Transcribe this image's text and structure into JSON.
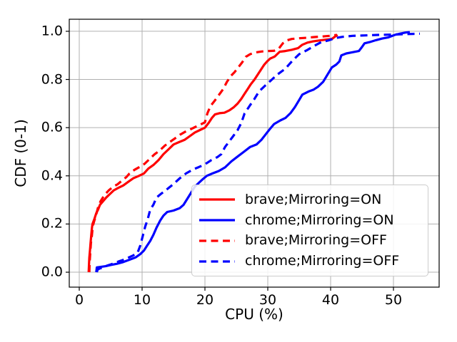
{
  "chart_data": {
    "type": "line",
    "subtype": "empirical-cdf",
    "title": "",
    "xlabel": "CPU (%)",
    "ylabel": "CDF (0-1)",
    "xlim": [
      -1.59,
      57.27
    ],
    "ylim": [
      -0.062,
      1.05
    ],
    "grid": true,
    "grid_color": "#b0b0b0",
    "legend_position": "lower right",
    "xtick_values": [
      0,
      10,
      20,
      30,
      40,
      50
    ],
    "xtick_labels": [
      "0",
      "10",
      "20",
      "30",
      "40",
      "50"
    ],
    "ytick_values": [
      0.0,
      0.2,
      0.4,
      0.6,
      0.8,
      1.0
    ],
    "ytick_labels": [
      "0.0",
      "0.2",
      "0.4",
      "0.6",
      "0.8",
      "1.0"
    ],
    "series": [
      {
        "name": "brave;Mirroring=ON",
        "color": "#ff0000",
        "style": "solid",
        "points": [
          [
            1.5,
            0
          ],
          [
            1.55,
            0.03
          ],
          [
            1.6,
            0.06
          ],
          [
            1.7,
            0.09
          ],
          [
            1.8,
            0.12
          ],
          [
            1.9,
            0.15
          ],
          [
            2.0,
            0.18
          ],
          [
            2.1,
            0.2
          ],
          [
            2.4,
            0.22
          ],
          [
            2.7,
            0.245
          ],
          [
            3.0,
            0.26
          ],
          [
            3.3,
            0.28
          ],
          [
            3.8,
            0.295
          ],
          [
            4.3,
            0.31
          ],
          [
            4.9,
            0.325
          ],
          [
            5.5,
            0.34
          ],
          [
            6.2,
            0.35
          ],
          [
            7.0,
            0.36
          ],
          [
            7.8,
            0.375
          ],
          [
            8.6,
            0.39
          ],
          [
            9.5,
            0.4
          ],
          [
            10.3,
            0.41
          ],
          [
            11.0,
            0.43
          ],
          [
            11.8,
            0.445
          ],
          [
            12.6,
            0.465
          ],
          [
            13.4,
            0.49
          ],
          [
            14.2,
            0.51
          ],
          [
            15.0,
            0.53
          ],
          [
            15.9,
            0.54
          ],
          [
            16.8,
            0.55
          ],
          [
            17.6,
            0.565
          ],
          [
            18.4,
            0.58
          ],
          [
            19.2,
            0.59
          ],
          [
            20.0,
            0.6
          ],
          [
            20.6,
            0.62
          ],
          [
            21.1,
            0.64
          ],
          [
            21.6,
            0.655
          ],
          [
            22.3,
            0.66
          ],
          [
            23.1,
            0.662
          ],
          [
            23.9,
            0.672
          ],
          [
            24.6,
            0.685
          ],
          [
            25.2,
            0.7
          ],
          [
            25.8,
            0.72
          ],
          [
            26.3,
            0.74
          ],
          [
            26.8,
            0.76
          ],
          [
            27.3,
            0.78
          ],
          [
            27.9,
            0.8
          ],
          [
            28.4,
            0.82
          ],
          [
            28.9,
            0.84
          ],
          [
            29.4,
            0.86
          ],
          [
            29.9,
            0.875
          ],
          [
            30.4,
            0.887
          ],
          [
            31.1,
            0.895
          ],
          [
            31.9,
            0.915
          ],
          [
            32.8,
            0.918
          ],
          [
            33.8,
            0.923
          ],
          [
            34.8,
            0.93
          ],
          [
            35.5,
            0.944
          ],
          [
            36.3,
            0.953
          ],
          [
            37.2,
            0.958
          ],
          [
            38.2,
            0.962
          ],
          [
            39.2,
            0.965
          ],
          [
            40.2,
            0.968
          ],
          [
            40.7,
            0.978
          ],
          [
            41.1,
            0.985
          ]
        ]
      },
      {
        "name": "chrome;Mirroring=ON",
        "color": "#0000ff",
        "style": "solid",
        "points": [
          [
            2.7,
            0
          ],
          [
            2.75,
            0.01
          ],
          [
            2.8,
            0.02
          ],
          [
            3.4,
            0.022
          ],
          [
            4.2,
            0.025
          ],
          [
            5.0,
            0.03
          ],
          [
            6.0,
            0.035
          ],
          [
            7.0,
            0.042
          ],
          [
            8.0,
            0.052
          ],
          [
            9.0,
            0.062
          ],
          [
            9.7,
            0.075
          ],
          [
            10.3,
            0.09
          ],
          [
            10.8,
            0.11
          ],
          [
            11.3,
            0.13
          ],
          [
            11.8,
            0.155
          ],
          [
            12.3,
            0.185
          ],
          [
            12.9,
            0.215
          ],
          [
            13.4,
            0.235
          ],
          [
            14.0,
            0.25
          ],
          [
            15.0,
            0.256
          ],
          [
            16.0,
            0.266
          ],
          [
            16.6,
            0.28
          ],
          [
            17.2,
            0.305
          ],
          [
            17.8,
            0.33
          ],
          [
            18.4,
            0.355
          ],
          [
            19.0,
            0.37
          ],
          [
            19.6,
            0.385
          ],
          [
            20.3,
            0.4
          ],
          [
            21.2,
            0.41
          ],
          [
            22.2,
            0.42
          ],
          [
            23.2,
            0.435
          ],
          [
            24.2,
            0.46
          ],
          [
            25.2,
            0.48
          ],
          [
            26.2,
            0.5
          ],
          [
            27.2,
            0.52
          ],
          [
            28.2,
            0.53
          ],
          [
            29.0,
            0.55
          ],
          [
            29.6,
            0.57
          ],
          [
            30.2,
            0.59
          ],
          [
            31.0,
            0.615
          ],
          [
            32.0,
            0.63
          ],
          [
            32.8,
            0.64
          ],
          [
            33.6,
            0.66
          ],
          [
            34.3,
            0.685
          ],
          [
            35.0,
            0.715
          ],
          [
            35.5,
            0.737
          ],
          [
            36.5,
            0.75
          ],
          [
            37.3,
            0.758
          ],
          [
            38.0,
            0.77
          ],
          [
            38.8,
            0.79
          ],
          [
            39.5,
            0.82
          ],
          [
            40.2,
            0.85
          ],
          [
            40.9,
            0.862
          ],
          [
            41.4,
            0.875
          ],
          [
            41.7,
            0.9
          ],
          [
            42.5,
            0.908
          ],
          [
            43.5,
            0.913
          ],
          [
            44.5,
            0.918
          ],
          [
            45.0,
            0.935
          ],
          [
            45.4,
            0.95
          ],
          [
            46.2,
            0.955
          ],
          [
            47.2,
            0.963
          ],
          [
            48.2,
            0.97
          ],
          [
            49.2,
            0.975
          ],
          [
            50.2,
            0.985
          ],
          [
            51.0,
            0.99
          ],
          [
            52.0,
            0.995
          ],
          [
            52.6,
            0.997
          ]
        ]
      },
      {
        "name": "brave;Mirroring=OFF",
        "color": "#ff0000",
        "style": "dashed",
        "points": [
          [
            1.6,
            0
          ],
          [
            1.65,
            0.04
          ],
          [
            1.75,
            0.08
          ],
          [
            1.85,
            0.12
          ],
          [
            2.0,
            0.15
          ],
          [
            2.15,
            0.19
          ],
          [
            2.35,
            0.21
          ],
          [
            2.7,
            0.24
          ],
          [
            3.0,
            0.27
          ],
          [
            3.4,
            0.295
          ],
          [
            4.0,
            0.32
          ],
          [
            4.7,
            0.34
          ],
          [
            5.4,
            0.355
          ],
          [
            6.1,
            0.365
          ],
          [
            6.8,
            0.38
          ],
          [
            7.5,
            0.395
          ],
          [
            8.0,
            0.41
          ],
          [
            8.8,
            0.425
          ],
          [
            9.6,
            0.437
          ],
          [
            10.4,
            0.45
          ],
          [
            11.2,
            0.47
          ],
          [
            12.0,
            0.49
          ],
          [
            12.8,
            0.505
          ],
          [
            13.6,
            0.525
          ],
          [
            14.4,
            0.54
          ],
          [
            15.2,
            0.555
          ],
          [
            16.0,
            0.57
          ],
          [
            16.8,
            0.582
          ],
          [
            17.6,
            0.592
          ],
          [
            18.4,
            0.602
          ],
          [
            19.2,
            0.612
          ],
          [
            20.0,
            0.622
          ],
          [
            20.4,
            0.66
          ],
          [
            20.9,
            0.69
          ],
          [
            21.5,
            0.71
          ],
          [
            22.2,
            0.735
          ],
          [
            22.9,
            0.76
          ],
          [
            23.5,
            0.79
          ],
          [
            24.1,
            0.814
          ],
          [
            24.7,
            0.83
          ],
          [
            25.3,
            0.85
          ],
          [
            25.9,
            0.87
          ],
          [
            26.5,
            0.894
          ],
          [
            27.2,
            0.905
          ],
          [
            28.0,
            0.912
          ],
          [
            29.0,
            0.916
          ],
          [
            30.0,
            0.918
          ],
          [
            31.0,
            0.919
          ],
          [
            31.8,
            0.93
          ],
          [
            32.4,
            0.95
          ],
          [
            33.0,
            0.962
          ],
          [
            33.8,
            0.968
          ],
          [
            35.0,
            0.971
          ],
          [
            36.2,
            0.973
          ],
          [
            37.4,
            0.976
          ],
          [
            38.6,
            0.978
          ],
          [
            39.8,
            0.981
          ],
          [
            41.0,
            0.985
          ]
        ]
      },
      {
        "name": "chrome;Mirroring=OFF",
        "color": "#0000ff",
        "style": "dashed",
        "points": [
          [
            2.8,
            0
          ],
          [
            2.9,
            0.01
          ],
          [
            3.2,
            0.015
          ],
          [
            3.8,
            0.02
          ],
          [
            4.4,
            0.027
          ],
          [
            5.0,
            0.032
          ],
          [
            5.6,
            0.038
          ],
          [
            6.4,
            0.046
          ],
          [
            7.1,
            0.052
          ],
          [
            7.8,
            0.06
          ],
          [
            8.6,
            0.07
          ],
          [
            9.3,
            0.082
          ],
          [
            9.7,
            0.11
          ],
          [
            10.1,
            0.15
          ],
          [
            10.5,
            0.19
          ],
          [
            10.9,
            0.22
          ],
          [
            11.3,
            0.26
          ],
          [
            11.8,
            0.28
          ],
          [
            12.3,
            0.31
          ],
          [
            13.0,
            0.325
          ],
          [
            14.0,
            0.345
          ],
          [
            15.0,
            0.366
          ],
          [
            16.0,
            0.39
          ],
          [
            17.0,
            0.41
          ],
          [
            18.0,
            0.425
          ],
          [
            19.0,
            0.436
          ],
          [
            20.0,
            0.448
          ],
          [
            21.0,
            0.465
          ],
          [
            22.0,
            0.478
          ],
          [
            22.6,
            0.49
          ],
          [
            23.2,
            0.52
          ],
          [
            23.8,
            0.54
          ],
          [
            24.5,
            0.565
          ],
          [
            25.2,
            0.59
          ],
          [
            25.8,
            0.62
          ],
          [
            26.3,
            0.658
          ],
          [
            27.1,
            0.69
          ],
          [
            27.9,
            0.72
          ],
          [
            28.6,
            0.75
          ],
          [
            29.6,
            0.775
          ],
          [
            30.5,
            0.796
          ],
          [
            31.5,
            0.82
          ],
          [
            32.8,
            0.845
          ],
          [
            34.0,
            0.88
          ],
          [
            35.0,
            0.905
          ],
          [
            36.2,
            0.921
          ],
          [
            37.3,
            0.938
          ],
          [
            38.5,
            0.955
          ],
          [
            39.6,
            0.962
          ],
          [
            40.8,
            0.972
          ],
          [
            41.9,
            0.977
          ],
          [
            43.5,
            0.981
          ],
          [
            45.5,
            0.983
          ],
          [
            47.5,
            0.985
          ],
          [
            49.5,
            0.986
          ],
          [
            51.5,
            0.988
          ],
          [
            53.0,
            0.989
          ],
          [
            54.2,
            0.99
          ]
        ]
      }
    ]
  }
}
